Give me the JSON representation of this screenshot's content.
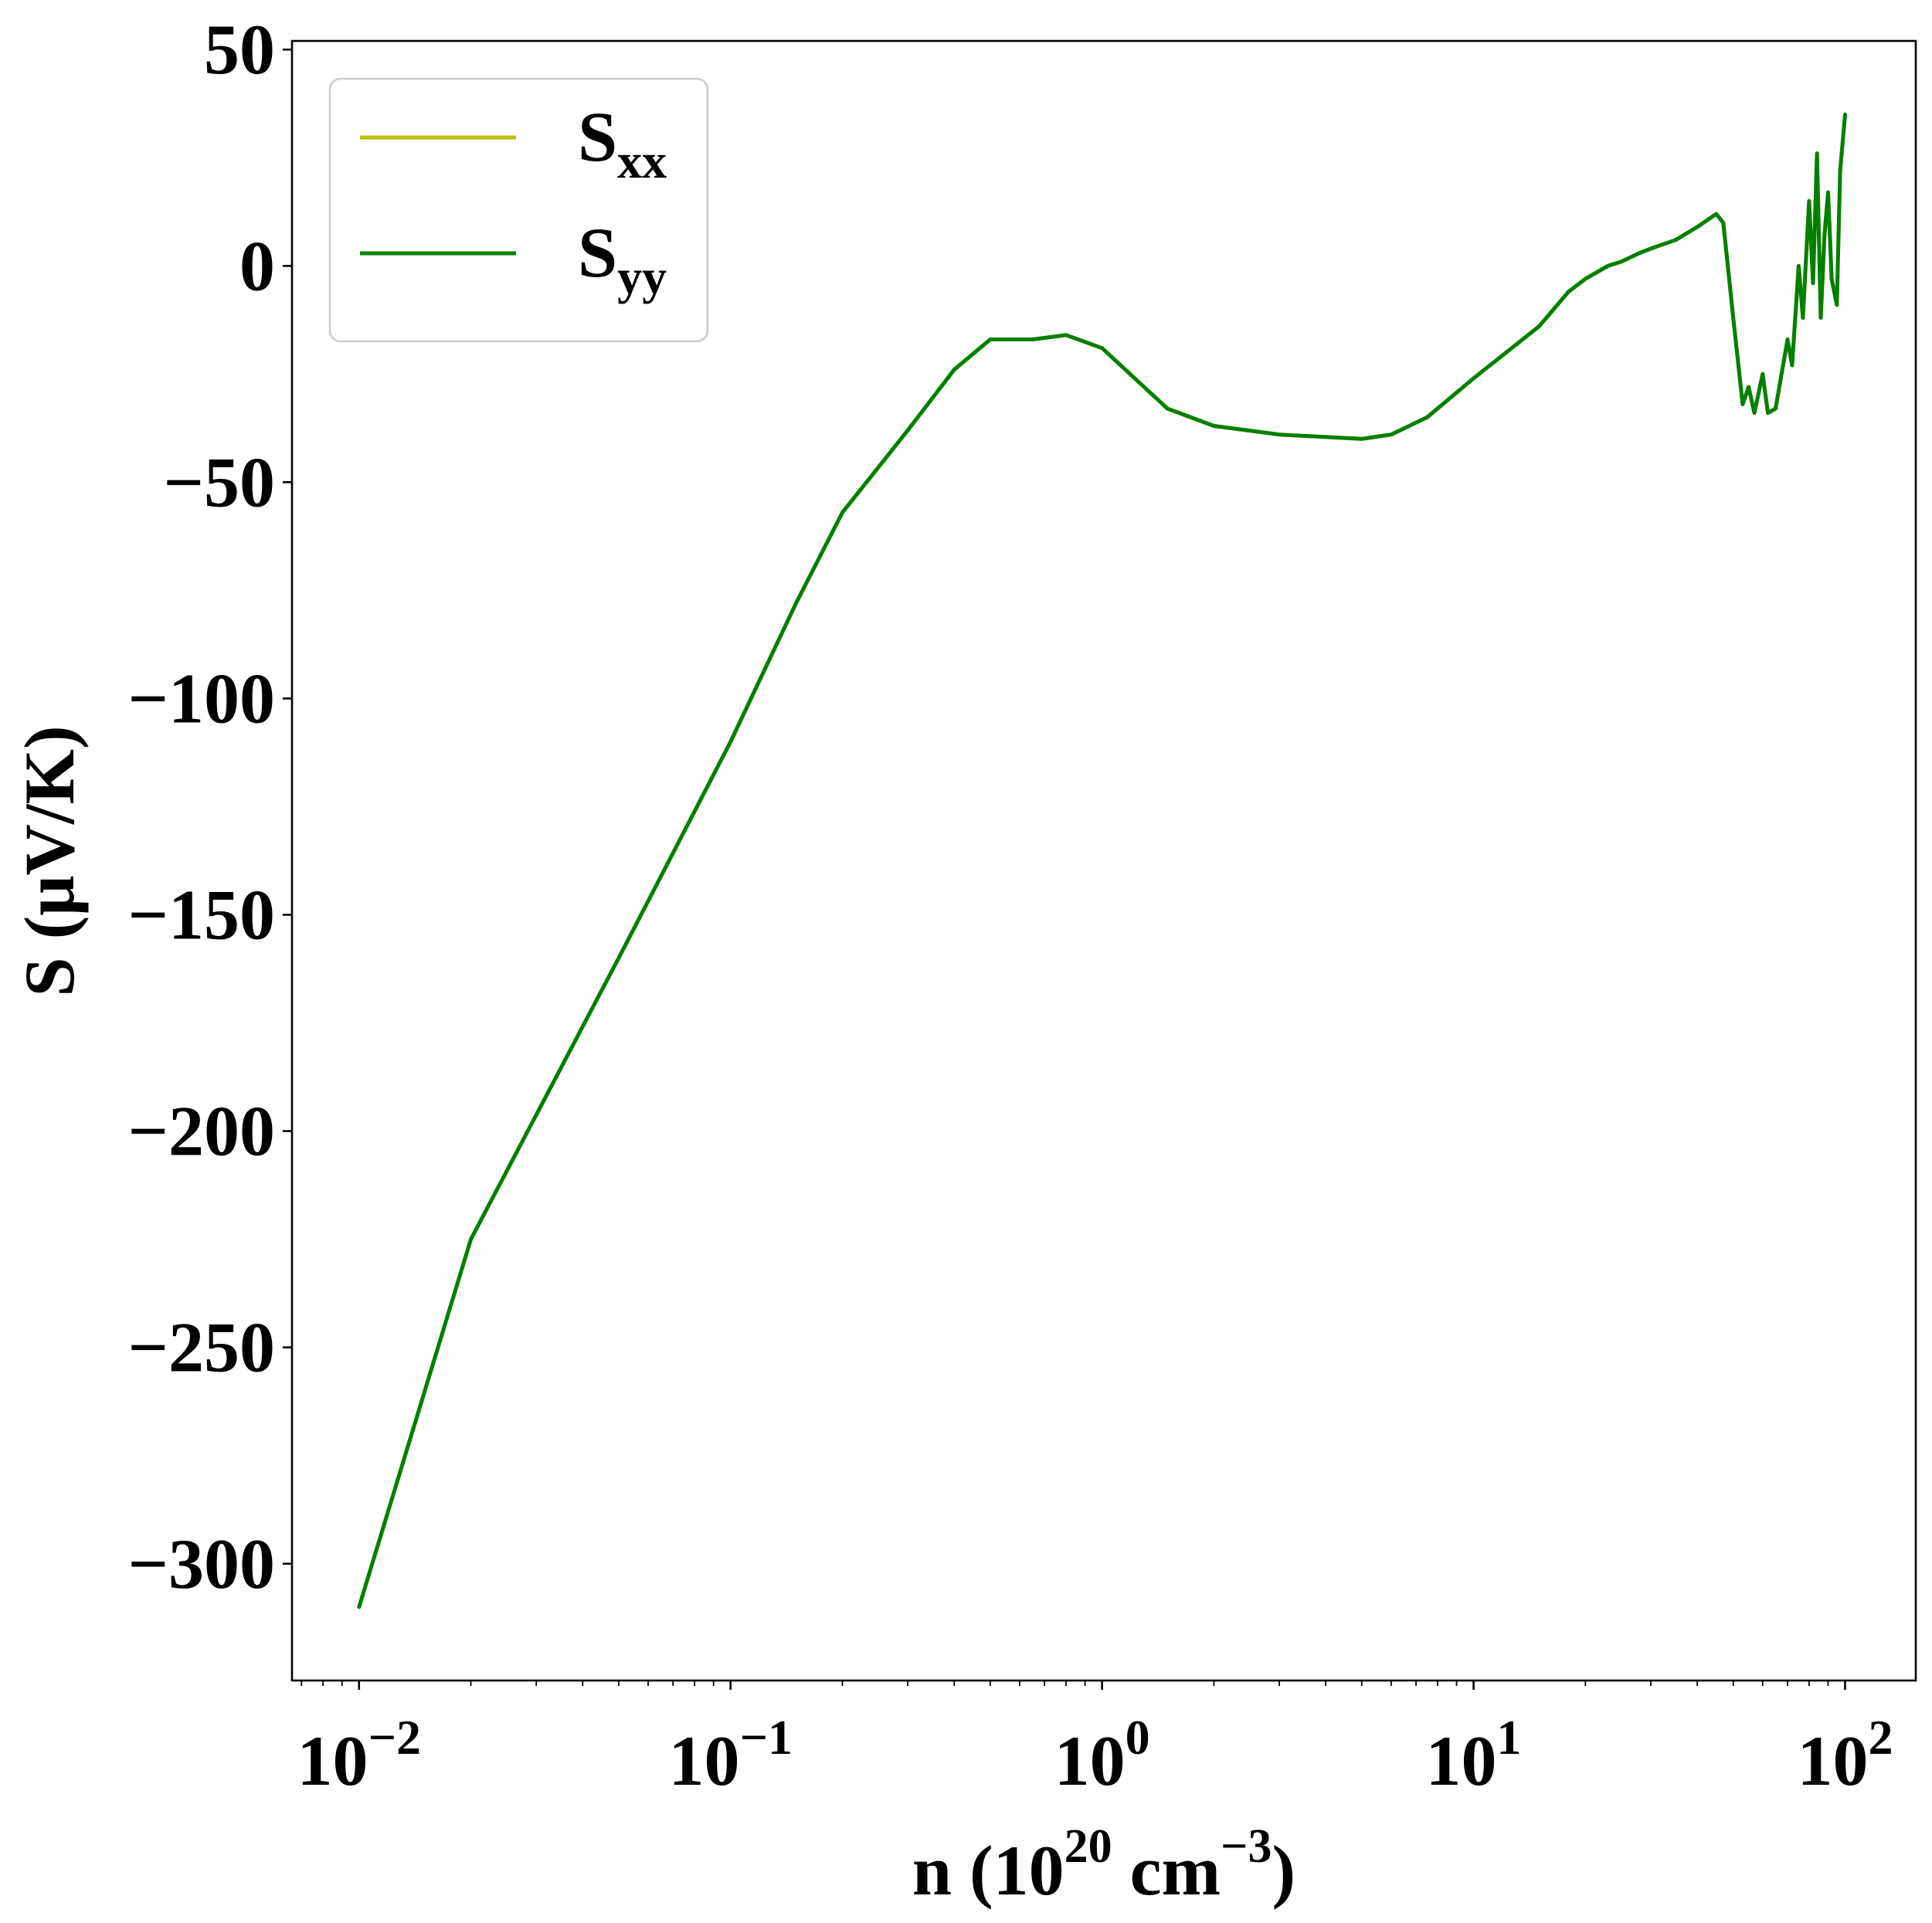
{
  "chart_data": {
    "type": "line",
    "xlabel": {
      "base": "n (10",
      "sup1": "20",
      "mid": " cm",
      "sup2": "−3",
      "end": ")"
    },
    "ylabel": "S (μV/K)",
    "xscale": "log",
    "xlim": [
      0.0066,
      155
    ],
    "ylim": [
      -327,
      52
    ],
    "x_ticks": [
      {
        "value": 0.01,
        "base": "10",
        "exp": "−2"
      },
      {
        "value": 0.1,
        "base": "10",
        "exp": "−1"
      },
      {
        "value": 1,
        "base": "10",
        "exp": "0"
      },
      {
        "value": 10,
        "base": "10",
        "exp": "1"
      },
      {
        "value": 100,
        "base": "10",
        "exp": "2"
      }
    ],
    "y_ticks": [
      {
        "value": 50,
        "label": "50"
      },
      {
        "value": 0,
        "label": "0"
      },
      {
        "value": -50,
        "label": "−50"
      },
      {
        "value": -100,
        "label": "−100"
      },
      {
        "value": -150,
        "label": "−150"
      },
      {
        "value": -200,
        "label": "−200"
      },
      {
        "value": -250,
        "label": "−250"
      },
      {
        "value": -300,
        "label": "−300"
      }
    ],
    "grid": false,
    "legend": {
      "position": "top-left",
      "entries": [
        {
          "base": "S",
          "sub": "xx",
          "color": "#bfbf00"
        },
        {
          "base": "S",
          "sub": "yy",
          "color": "#008000"
        }
      ]
    },
    "series": [
      {
        "name": "Sxx",
        "color": "#bfbf00",
        "x": [
          0.01,
          0.02,
          0.05,
          0.1,
          0.15,
          0.2,
          0.3,
          0.4,
          0.5,
          0.65,
          0.8,
          1.0,
          1.5,
          2.0,
          3.0,
          5.0,
          6.0,
          7.5,
          10,
          15,
          18,
          20,
          23,
          25,
          28,
          30,
          35,
          40,
          45,
          47,
          50,
          53,
          55,
          57,
          60,
          62,
          65,
          70,
          72,
          75,
          77,
          80,
          82,
          84,
          86,
          88,
          90,
          92,
          95,
          97,
          100
        ],
        "y": [
          -310,
          -225,
          -160,
          -110,
          -78,
          -57,
          -38,
          -24,
          -17,
          -17,
          -16,
          -19,
          -33,
          -37,
          -39,
          -40,
          -39,
          -35,
          -26,
          -14,
          -6,
          -3,
          0,
          1,
          3,
          4,
          6,
          9,
          12,
          10,
          -12,
          -32,
          -28,
          -34,
          -25,
          -34,
          -33,
          -17,
          -23,
          0,
          -12,
          15,
          -4,
          26,
          -12,
          7,
          17,
          -3,
          -9,
          22,
          35
        ]
      },
      {
        "name": "Syy",
        "color": "#008000",
        "x": [
          0.01,
          0.02,
          0.05,
          0.1,
          0.15,
          0.2,
          0.3,
          0.4,
          0.5,
          0.65,
          0.8,
          1.0,
          1.5,
          2.0,
          3.0,
          5.0,
          6.0,
          7.5,
          10,
          15,
          18,
          20,
          23,
          25,
          28,
          30,
          35,
          40,
          45,
          47,
          50,
          53,
          55,
          57,
          60,
          62,
          65,
          70,
          72,
          75,
          77,
          80,
          82,
          84,
          86,
          88,
          90,
          92,
          95,
          97,
          100
        ],
        "y": [
          -310,
          -225,
          -160,
          -110,
          -78,
          -57,
          -38,
          -24,
          -17,
          -17,
          -16,
          -19,
          -33,
          -37,
          -39,
          -40,
          -39,
          -35,
          -26,
          -14,
          -6,
          -3,
          0,
          1,
          3,
          4,
          6,
          9,
          12,
          10,
          -12,
          -32,
          -28,
          -34,
          -25,
          -34,
          -33,
          -17,
          -23,
          0,
          -12,
          15,
          -4,
          26,
          -12,
          7,
          17,
          -3,
          -9,
          22,
          35
        ]
      }
    ]
  }
}
